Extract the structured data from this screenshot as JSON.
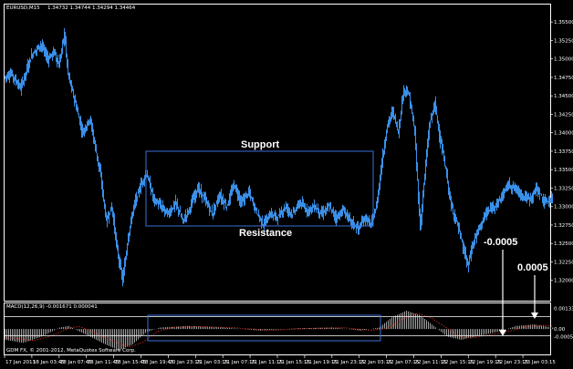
{
  "window": {
    "symbol_title": "EURUSD,M15",
    "ohlc": "1.34732 1.34744 1.34294 1.34464"
  },
  "colors": {
    "background": "#000000",
    "candle": "#3a8fe8",
    "frame": "#ffffff",
    "box": "#3d6fd8",
    "histogram": "#c8c8c8",
    "signal": "#e03020"
  },
  "chart_data": {
    "type": "line",
    "price_axis_labels": [
      "1.35500",
      "1.35250",
      "1.35000",
      "1.34750",
      "1.34500",
      "1.34250",
      "1.34000",
      "1.33750",
      "1.33500",
      "1.33250",
      "1.33000",
      "1.32750",
      "1.32500",
      "1.32250",
      "1.32000"
    ],
    "ylim": [
      1.3175,
      1.3565
    ],
    "time_axis_labels": [
      "17 Jan 2013",
      "18 Jan 03:45",
      "18 Jan 07:45",
      "18 Jan 11:45",
      "18 Jan 15:45",
      "18 Jan 19:45",
      "20 Jan 23:15",
      "21 Jan 03:15",
      "21 Jan 07:15",
      "21 Jan 11:15",
      "21 Jan 15:15",
      "21 Jan 19:15",
      "21 Jan 23:15",
      "22 Jan 03:15",
      "22 Jan 07:15",
      "22 Jan 11:15",
      "22 Jan 15:15",
      "22 Jan 19:15",
      "22 Jan 23:15",
      "23 Jan 03:15"
    ],
    "price_path": [
      [
        0,
        1.3475
      ],
      [
        8,
        1.348
      ],
      [
        18,
        1.346
      ],
      [
        30,
        1.3505
      ],
      [
        40,
        1.352
      ],
      [
        48,
        1.35
      ],
      [
        55,
        1.351
      ],
      [
        60,
        1.349
      ],
      [
        66,
        1.3535
      ],
      [
        70,
        1.348
      ],
      [
        78,
        1.344
      ],
      [
        86,
        1.34
      ],
      [
        94,
        1.342
      ],
      [
        100,
        1.338
      ],
      [
        106,
        1.334
      ],
      [
        112,
        1.328
      ],
      [
        118,
        1.33
      ],
      [
        124,
        1.324
      ],
      [
        130,
        1.32
      ],
      [
        136,
        1.326
      ],
      [
        142,
        1.33
      ],
      [
        150,
        1.333
      ],
      [
        156,
        1.3345
      ],
      [
        164,
        1.331
      ],
      [
        172,
        1.33
      ],
      [
        180,
        1.329
      ],
      [
        188,
        1.3305
      ],
      [
        196,
        1.328
      ],
      [
        204,
        1.33
      ],
      [
        212,
        1.3325
      ],
      [
        220,
        1.331
      ],
      [
        228,
        1.329
      ],
      [
        236,
        1.3315
      ],
      [
        244,
        1.33
      ],
      [
        252,
        1.333
      ],
      [
        260,
        1.3305
      ],
      [
        268,
        1.332
      ],
      [
        276,
        1.3295
      ],
      [
        284,
        1.3275
      ],
      [
        292,
        1.329
      ],
      [
        300,
        1.3285
      ],
      [
        308,
        1.33
      ],
      [
        316,
        1.329
      ],
      [
        324,
        1.3305
      ],
      [
        332,
        1.3295
      ],
      [
        340,
        1.33
      ],
      [
        348,
        1.329
      ],
      [
        356,
        1.33
      ],
      [
        364,
        1.3285
      ],
      [
        372,
        1.3295
      ],
      [
        380,
        1.328
      ],
      [
        388,
        1.327
      ],
      [
        396,
        1.3285
      ],
      [
        402,
        1.3275
      ],
      [
        408,
        1.33
      ],
      [
        414,
        1.336
      ],
      [
        420,
        1.341
      ],
      [
        426,
        1.343
      ],
      [
        432,
        1.34
      ],
      [
        438,
        1.346
      ],
      [
        444,
        1.345
      ],
      [
        450,
        1.34
      ],
      [
        456,
        1.327
      ],
      [
        460,
        1.333
      ],
      [
        466,
        1.341
      ],
      [
        472,
        1.344
      ],
      [
        478,
        1.339
      ],
      [
        484,
        1.335
      ],
      [
        490,
        1.33
      ],
      [
        496,
        1.328
      ],
      [
        502,
        1.325
      ],
      [
        508,
        1.322
      ],
      [
        514,
        1.325
      ],
      [
        520,
        1.327
      ],
      [
        528,
        1.329
      ],
      [
        536,
        1.33
      ],
      [
        544,
        1.331
      ],
      [
        552,
        1.333
      ],
      [
        560,
        1.3325
      ],
      [
        568,
        1.3315
      ],
      [
        576,
        1.331
      ],
      [
        584,
        1.3325
      ],
      [
        592,
        1.3305
      ],
      [
        600,
        1.331
      ]
    ],
    "macd": {
      "label": "MACD(12,26,9) -0.001671 0.000041",
      "axis_labels": [
        "0.001339",
        "0.00",
        "-0.0005"
      ],
      "ylim": [
        -0.0016,
        0.0015
      ],
      "histogram": [
        [
          0,
          -0.0007
        ],
        [
          20,
          -0.0009
        ],
        [
          40,
          -0.0005
        ],
        [
          60,
          0.0001
        ],
        [
          70,
          0.0002
        ],
        [
          90,
          -0.0004
        ],
        [
          110,
          -0.001
        ],
        [
          125,
          -0.0014
        ],
        [
          140,
          -0.001
        ],
        [
          155,
          -0.0002
        ],
        [
          170,
          0.0001
        ],
        [
          200,
          0.0002
        ],
        [
          240,
          0.0001
        ],
        [
          280,
          -0.0001
        ],
        [
          320,
          5e-05
        ],
        [
          360,
          0.0001
        ],
        [
          390,
          -0.0001
        ],
        [
          410,
          0.0001
        ],
        [
          425,
          0.0008
        ],
        [
          440,
          0.0012
        ],
        [
          455,
          0.0009
        ],
        [
          470,
          0.0002
        ],
        [
          485,
          -0.0005
        ],
        [
          500,
          -0.0007
        ],
        [
          515,
          -0.0005
        ],
        [
          530,
          -0.0003
        ],
        [
          545,
          -0.0001
        ],
        [
          560,
          0.0002
        ],
        [
          580,
          0.0003
        ],
        [
          600,
          0.0001
        ]
      ]
    }
  },
  "annotations": {
    "support": "Support",
    "resistance": "Resistance",
    "val_neg": "-0.0005",
    "val_pos": "0.0005"
  },
  "footer": {
    "copyright": "GDM FX, © 2001-2012, MetaQuotes Software Corp."
  }
}
